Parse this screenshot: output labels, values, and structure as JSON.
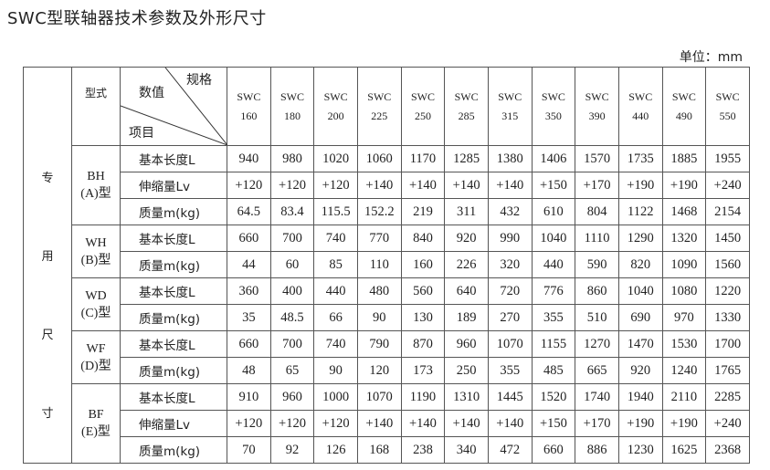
{
  "title": "SWC型联轴器技术参数及外形尺寸",
  "unit": "单位：mm",
  "header": {
    "type_label": "型式",
    "spec_label": "规格",
    "value_label": "数值",
    "item_label": "项目",
    "section_label": [
      "专",
      "用",
      "尺",
      "寸"
    ],
    "models": [
      [
        "SWC",
        "160"
      ],
      [
        "SWC",
        "180"
      ],
      [
        "SWC",
        "200"
      ],
      [
        "SWC",
        "225"
      ],
      [
        "SWC",
        "250"
      ],
      [
        "SWC",
        "285"
      ],
      [
        "SWC",
        "315"
      ],
      [
        "SWC",
        "350"
      ],
      [
        "SWC",
        "390"
      ],
      [
        "SWC",
        "440"
      ],
      [
        "SWC",
        "490"
      ],
      [
        "SWC",
        "550"
      ]
    ]
  },
  "groups": [
    {
      "type": [
        "BH",
        "(A)型"
      ],
      "rows": [
        {
          "item": "基本长度L",
          "values": [
            "940",
            "980",
            "1020",
            "1060",
            "1170",
            "1285",
            "1380",
            "1406",
            "1570",
            "1735",
            "1885",
            "1955"
          ]
        },
        {
          "item": "伸缩量Lv",
          "values": [
            "+120",
            "+120",
            "+120",
            "+140",
            "+140",
            "+140",
            "+140",
            "+150",
            "+170",
            "+190",
            "+190",
            "+240"
          ]
        },
        {
          "item": "质量m(kg)",
          "values": [
            "64.5",
            "83.4",
            "115.5",
            "152.2",
            "219",
            "311",
            "432",
            "610",
            "804",
            "1122",
            "1468",
            "2154"
          ]
        }
      ]
    },
    {
      "type": [
        "WH",
        "(B)型"
      ],
      "rows": [
        {
          "item": "基本长度L",
          "values": [
            "660",
            "700",
            "740",
            "770",
            "840",
            "920",
            "990",
            "1040",
            "1110",
            "1290",
            "1320",
            "1450"
          ]
        },
        {
          "item": "质量m(kg)",
          "values": [
            "44",
            "60",
            "85",
            "110",
            "160",
            "226",
            "320",
            "440",
            "590",
            "820",
            "1090",
            "1560"
          ]
        }
      ]
    },
    {
      "type": [
        "WD",
        "(C)型"
      ],
      "rows": [
        {
          "item": "基本长度L",
          "values": [
            "360",
            "400",
            "440",
            "480",
            "560",
            "640",
            "720",
            "776",
            "860",
            "1040",
            "1080",
            "1220"
          ]
        },
        {
          "item": "质量m(kg)",
          "values": [
            "35",
            "48.5",
            "66",
            "90",
            "130",
            "189",
            "270",
            "355",
            "510",
            "690",
            "970",
            "1330"
          ]
        }
      ]
    },
    {
      "type": [
        "WF",
        "(D)型"
      ],
      "rows": [
        {
          "item": "基本长度L",
          "values": [
            "660",
            "700",
            "740",
            "790",
            "870",
            "960",
            "1070",
            "1155",
            "1270",
            "1470",
            "1530",
            "1700"
          ]
        },
        {
          "item": "质量m(kg)",
          "values": [
            "48",
            "65",
            "90",
            "120",
            "173",
            "250",
            "355",
            "485",
            "665",
            "920",
            "1240",
            "1765"
          ]
        }
      ]
    },
    {
      "type": [
        "BF",
        "(E)型"
      ],
      "rows": [
        {
          "item": "基本长度L",
          "values": [
            "910",
            "960",
            "1000",
            "1070",
            "1190",
            "1310",
            "1445",
            "1520",
            "1740",
            "1940",
            "2110",
            "2285"
          ]
        },
        {
          "item": "伸缩量Lv",
          "values": [
            "+120",
            "+120",
            "+120",
            "+140",
            "+140",
            "+140",
            "+140",
            "+150",
            "+170",
            "+190",
            "+190",
            "+240"
          ]
        },
        {
          "item": "质量m(kg)",
          "values": [
            "70",
            "92",
            "126",
            "168",
            "238",
            "340",
            "472",
            "660",
            "886",
            "1230",
            "1625",
            "2368"
          ]
        }
      ]
    }
  ]
}
